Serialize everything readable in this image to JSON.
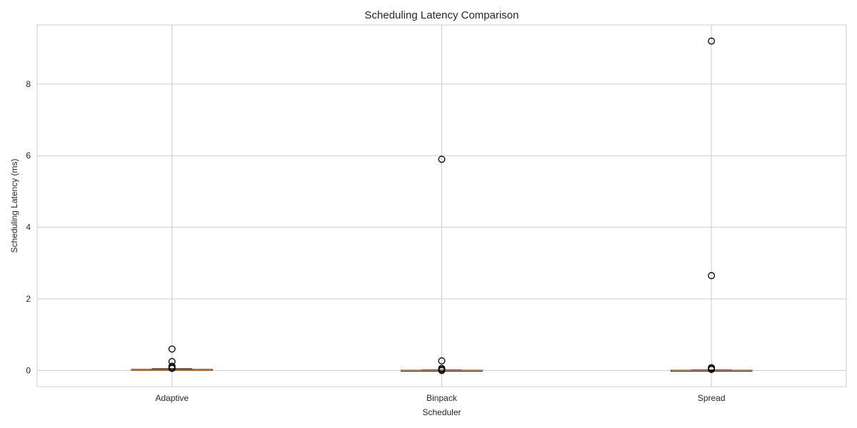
{
  "chart_data": {
    "type": "box",
    "title": "Scheduling Latency Comparison",
    "xlabel": "Scheduler",
    "ylabel": "Scheduling Latency (ms)",
    "ylim": [
      -0.45,
      9.65
    ],
    "yticks": [
      0,
      2,
      4,
      6,
      8
    ],
    "grid": true,
    "categories": [
      "Adaptive",
      "Binpack",
      "Spread"
    ],
    "boxes": [
      {
        "name": "Adaptive",
        "q1": 0.0,
        "median": 0.01,
        "q3": 0.03,
        "whisker_low": 0.0,
        "whisker_high": 0.05,
        "fliers": [
          0.6,
          0.25,
          0.12,
          0.08,
          0.06
        ]
      },
      {
        "name": "Binpack",
        "q1": -0.01,
        "median": 0.0,
        "q3": 0.01,
        "whisker_low": -0.01,
        "whisker_high": 0.02,
        "fliers": [
          5.9,
          0.27,
          0.06,
          0.03,
          0.0
        ]
      },
      {
        "name": "Spread",
        "q1": -0.01,
        "median": 0.0,
        "q3": 0.01,
        "whisker_low": -0.01,
        "whisker_high": 0.02,
        "fliers": [
          9.2,
          2.65,
          0.08,
          0.05,
          0.03
        ]
      }
    ],
    "colors": {
      "median": "#ee8a33",
      "box": "#262626",
      "grid": "#cccccc",
      "flier": "#000000"
    }
  }
}
